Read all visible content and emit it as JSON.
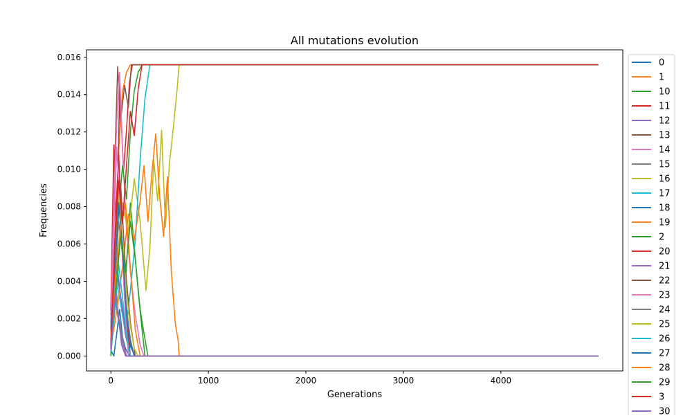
{
  "chart_data": {
    "type": "line",
    "title": "All mutations evolution",
    "xlabel": "Generations",
    "ylabel": "Frequencies",
    "xlim": [
      -250,
      5250
    ],
    "ylim": [
      -0.0008,
      0.0164
    ],
    "x_ticks": [
      0,
      1000,
      2000,
      3000,
      4000
    ],
    "x_tick_labels": [
      "0",
      "1000",
      "2000",
      "3000",
      "4000"
    ],
    "y_ticks": [
      0.0,
      0.002,
      0.004,
      0.006,
      0.008,
      0.01,
      0.012,
      0.014,
      0.016
    ],
    "y_tick_labels": [
      "0.000",
      "0.002",
      "0.004",
      "0.006",
      "0.008",
      "0.010",
      "0.012",
      "0.014",
      "0.016"
    ],
    "grid": false,
    "legend_position": "outside-right",
    "series": [
      {
        "name": "0",
        "color": "#1f77b4",
        "x": [
          0,
          30,
          60,
          90,
          120,
          150,
          180,
          200,
          4999
        ],
        "y": [
          0.0003,
          0.0,
          0.0012,
          0.0025,
          0.001,
          0.0004,
          0.0001,
          0.0,
          0.0
        ]
      },
      {
        "name": "1",
        "color": "#ff7f0e",
        "x": [
          0,
          40,
          80,
          120,
          160,
          200,
          240,
          4999
        ],
        "y": [
          0.0024,
          0.006,
          0.011,
          0.0142,
          0.0152,
          0.0156,
          0.0156,
          0.0156
        ]
      },
      {
        "name": "10",
        "color": "#2ca02c",
        "x": [
          0,
          50,
          100,
          150,
          200,
          250,
          300,
          350,
          4999
        ],
        "y": [
          0.0001,
          0.003,
          0.007,
          0.004,
          0.0082,
          0.0052,
          0.0024,
          0.0,
          0.0
        ]
      },
      {
        "name": "11",
        "color": "#d62728",
        "x": [
          0,
          30,
          60,
          90,
          130,
          160,
          190,
          220,
          4999
        ],
        "y": [
          0.0025,
          0.0113,
          0.0052,
          0.0145,
          0.0099,
          0.0121,
          0.0146,
          0.0156,
          0.0156
        ]
      },
      {
        "name": "12",
        "color": "#9467bd",
        "x": [
          0,
          40,
          80,
          110,
          150,
          4999
        ],
        "y": [
          0.0012,
          0.0045,
          0.002,
          0.0006,
          0.0,
          0.0
        ]
      },
      {
        "name": "13",
        "color": "#8c564b",
        "x": [
          0,
          40,
          70,
          100,
          140,
          180,
          210,
          4999
        ],
        "y": [
          0.0,
          0.0105,
          0.0155,
          0.0126,
          0.0145,
          0.0133,
          0.0156,
          0.0156
        ]
      },
      {
        "name": "14",
        "color": "#e377c2",
        "x": [
          0,
          30,
          60,
          90,
          120,
          160,
          200,
          250,
          300,
          340,
          4999
        ],
        "y": [
          0.0018,
          0.0085,
          0.0125,
          0.0152,
          0.011,
          0.0068,
          0.0045,
          0.0022,
          0.0006,
          0.0,
          0.0
        ]
      },
      {
        "name": "15",
        "color": "#7f7f7f",
        "x": [
          0,
          40,
          80,
          120,
          160,
          4999
        ],
        "y": [
          0.0005,
          0.0038,
          0.0021,
          0.0009,
          0.0,
          0.0
        ]
      },
      {
        "name": "16",
        "color": "#bcbd22",
        "x": [
          0,
          60,
          120,
          180,
          240,
          300,
          360,
          400,
          440,
          480,
          520,
          560,
          600,
          640,
          680,
          700,
          4999
        ],
        "y": [
          0.001,
          0.0048,
          0.0082,
          0.0065,
          0.0095,
          0.0072,
          0.0035,
          0.0058,
          0.0105,
          0.0083,
          0.0121,
          0.0069,
          0.0103,
          0.0122,
          0.0143,
          0.0156,
          0.0156
        ]
      },
      {
        "name": "17",
        "color": "#17becf",
        "x": [
          0,
          50,
          100,
          150,
          200,
          250,
          300,
          350,
          400,
          4999
        ],
        "y": [
          0.0005,
          0.0042,
          0.0028,
          0.0012,
          0.0035,
          0.0062,
          0.0105,
          0.0138,
          0.0156,
          0.0156
        ]
      },
      {
        "name": "18",
        "color": "#1f77b4",
        "x": [
          0,
          50,
          100,
          150,
          200,
          250,
          4999
        ],
        "y": [
          0.0022,
          0.0048,
          0.0032,
          0.0015,
          0.0005,
          0.0,
          0.0
        ]
      },
      {
        "name": "19",
        "color": "#ff7f0e",
        "x": [
          0,
          60,
          120,
          180,
          240,
          300,
          340,
          380,
          420,
          460,
          500,
          540,
          580,
          620,
          660,
          690,
          700,
          4999
        ],
        "y": [
          0.0005,
          0.0024,
          0.0048,
          0.0076,
          0.0062,
          0.0083,
          0.0102,
          0.0072,
          0.0098,
          0.0119,
          0.0086,
          0.0064,
          0.0096,
          0.0045,
          0.0018,
          0.0008,
          0.0,
          0.0
        ]
      },
      {
        "name": "2",
        "color": "#2ca02c",
        "x": [
          0,
          40,
          80,
          120,
          160,
          200,
          240,
          280,
          320,
          4999
        ],
        "y": [
          0.0,
          0.0032,
          0.0078,
          0.0102,
          0.0084,
          0.012,
          0.0142,
          0.0152,
          0.0156,
          0.0156
        ]
      },
      {
        "name": "20",
        "color": "#d62728",
        "x": [
          0,
          40,
          80,
          120,
          160,
          200,
          4999
        ],
        "y": [
          0.0015,
          0.0062,
          0.0109,
          0.0052,
          0.002,
          0.0,
          0.0
        ]
      },
      {
        "name": "21",
        "color": "#9467bd",
        "x": [
          0,
          50,
          100,
          150,
          200,
          4999
        ],
        "y": [
          0.0008,
          0.0055,
          0.0032,
          0.0011,
          0.0,
          0.0
        ]
      },
      {
        "name": "22",
        "color": "#8c564b",
        "x": [
          0,
          50,
          100,
          150,
          200,
          250,
          4999
        ],
        "y": [
          0.0004,
          0.0068,
          0.0092,
          0.0046,
          0.0018,
          0.0,
          0.0
        ]
      },
      {
        "name": "23",
        "color": "#e377c2",
        "x": [
          0,
          30,
          60,
          100,
          140,
          180,
          4999
        ],
        "y": [
          0.0012,
          0.0065,
          0.0112,
          0.0072,
          0.003,
          0.0,
          0.0
        ]
      },
      {
        "name": "24",
        "color": "#7f7f7f",
        "x": [
          0,
          40,
          80,
          120,
          160,
          200,
          240,
          4999
        ],
        "y": [
          0.0006,
          0.0038,
          0.0072,
          0.0054,
          0.0026,
          0.0009,
          0.0,
          0.0
        ]
      },
      {
        "name": "25",
        "color": "#bcbd22",
        "x": [
          0,
          40,
          80,
          120,
          160,
          200,
          240,
          280,
          4999
        ],
        "y": [
          0.001,
          0.0052,
          0.0086,
          0.0061,
          0.0034,
          0.0016,
          0.0004,
          0.0,
          0.0
        ]
      },
      {
        "name": "26",
        "color": "#17becf",
        "x": [
          0,
          40,
          80,
          120,
          160,
          200,
          4999
        ],
        "y": [
          0.0002,
          0.0026,
          0.0049,
          0.0031,
          0.0011,
          0.0,
          0.0
        ]
      },
      {
        "name": "27",
        "color": "#1f77b4",
        "x": [
          0,
          40,
          80,
          120,
          160,
          200,
          240,
          4999
        ],
        "y": [
          0.0014,
          0.0046,
          0.0082,
          0.0058,
          0.0021,
          0.0007,
          0.0,
          0.0
        ]
      },
      {
        "name": "28",
        "color": "#ff7f0e",
        "x": [
          0,
          50,
          100,
          150,
          200,
          250,
          300,
          4999
        ],
        "y": [
          0.0009,
          0.0044,
          0.0068,
          0.0082,
          0.0047,
          0.0014,
          0.0,
          0.0
        ]
      },
      {
        "name": "29",
        "color": "#2ca02c",
        "x": [
          0,
          50,
          100,
          150,
          200,
          250,
          300,
          340,
          380,
          4999
        ],
        "y": [
          0.0007,
          0.0035,
          0.0064,
          0.0045,
          0.0072,
          0.0052,
          0.0025,
          0.0012,
          0.0,
          0.0
        ]
      },
      {
        "name": "3",
        "color": "#d62728",
        "x": [
          0,
          40,
          80,
          120,
          160,
          200,
          240,
          280,
          320,
          4999
        ],
        "y": [
          0.0006,
          0.0058,
          0.0094,
          0.0071,
          0.0102,
          0.0131,
          0.0118,
          0.0143,
          0.0156,
          0.0156
        ]
      },
      {
        "name": "30",
        "color": "#9467bd",
        "x": [
          0,
          40,
          80,
          120,
          160,
          4999
        ],
        "y": [
          0.0003,
          0.0033,
          0.0018,
          0.0006,
          0.0,
          0.0
        ]
      }
    ]
  }
}
